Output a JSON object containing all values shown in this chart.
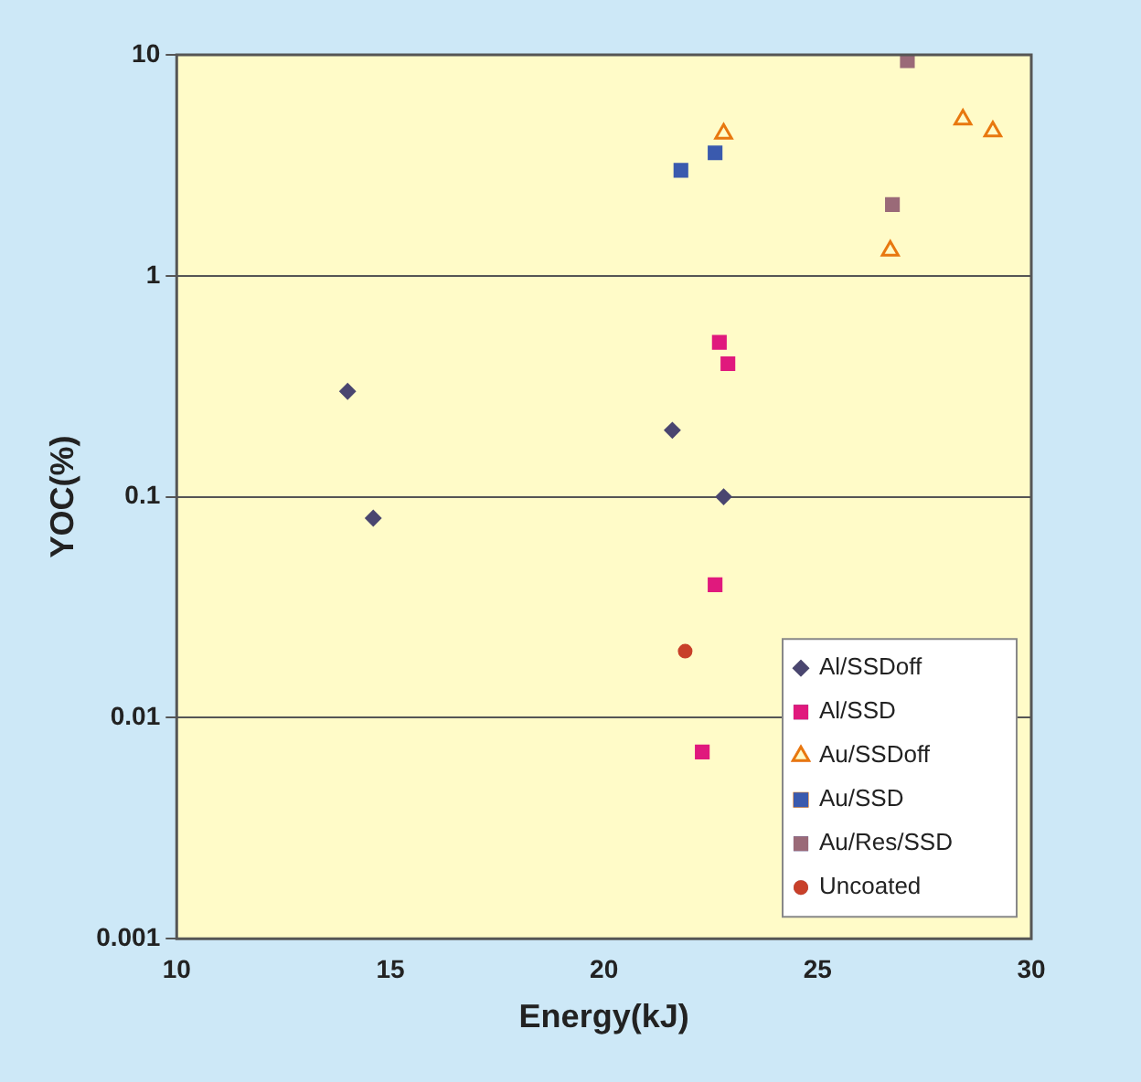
{
  "chart_data": {
    "type": "scatter",
    "xlabel": "Energy(kJ)",
    "ylabel": "YOC(%)",
    "log": "y",
    "grid": "y",
    "legend": "bottom right",
    "xlim": [
      10,
      30
    ],
    "xticks": [
      10,
      15,
      20,
      25,
      30
    ],
    "ylim": [
      0.001,
      10
    ],
    "yticks": [
      0.001,
      0.01,
      0.1,
      1,
      10
    ],
    "series": [
      {
        "name": "Al/SSDoff",
        "color": "#4a4670",
        "marker": "diamond",
        "x": [
          14,
          21.6,
          22.8,
          14.6
        ],
        "values": [
          0.3,
          0.2,
          0.1,
          0.08
        ]
      },
      {
        "name": "Al/SSD",
        "color": "#e0197d",
        "marker": "square",
        "x": [
          22.7,
          22.9,
          22.6,
          22.3
        ],
        "values": [
          0.5,
          0.4,
          0.04,
          0.007
        ]
      },
      {
        "name": "Au/SSDoff",
        "color": "#e8780f",
        "marker": "triangle",
        "x": [
          22.8,
          26.7,
          28.4,
          29.1
        ],
        "values": [
          4.4,
          1.3,
          5.1,
          4.5
        ]
      },
      {
        "name": "Au/SSD",
        "color": "#3a5aae",
        "marker": "square",
        "x": [
          21.8,
          22.6
        ],
        "values": [
          3.0,
          3.6
        ]
      },
      {
        "name": "Au/Res/SSD",
        "color": "#9a6a78",
        "marker": "square",
        "x": [
          27.1,
          26.75
        ],
        "values": [
          9.4,
          2.1
        ]
      },
      {
        "name": "Uncoated",
        "color": "#c8402a",
        "marker": "circle",
        "x": [
          21.9
        ],
        "values": [
          0.02
        ]
      }
    ]
  }
}
